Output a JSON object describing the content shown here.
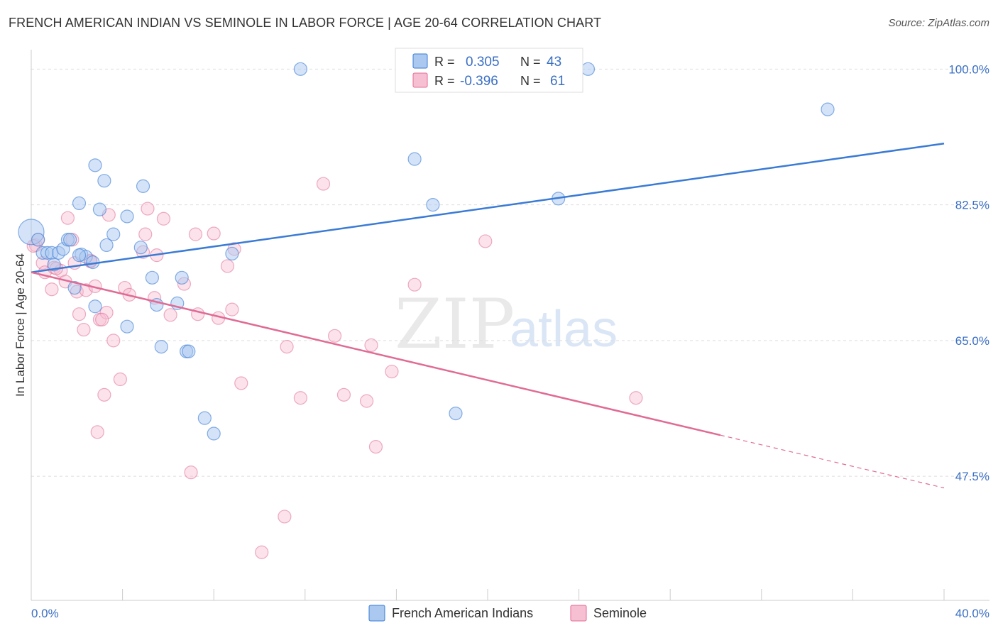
{
  "title": "FRENCH AMERICAN INDIAN VS SEMINOLE IN LABOR FORCE | AGE 20-64 CORRELATION CHART",
  "source": "Source: ZipAtlas.com",
  "watermark": {
    "part1": "ZIP",
    "part2": "atlas"
  },
  "colors": {
    "blue": "#3a7bd5",
    "blue_fill": "#aac8f0",
    "pink": "#e06b95",
    "pink_fill": "#f7bfd2",
    "axis_text": "#3a6fc4"
  },
  "legend": {
    "rows": [
      {
        "r_label": "R =",
        "r_value": "0.305",
        "n_label": "N =",
        "n_value": "43"
      },
      {
        "r_label": "R =",
        "r_value": "-0.396",
        "n_label": "N =",
        "n_value": "61"
      }
    ]
  },
  "chart_data": {
    "type": "scatter",
    "title": "FRENCH AMERICAN INDIAN VS SEMINOLE IN LABOR FORCE | AGE 20-64 CORRELATION CHART",
    "xlabel": "",
    "ylabel": "In Labor Force | Age 20-64",
    "xlim": [
      0,
      40
    ],
    "ylim": [
      31.5,
      102.5
    ],
    "x_tick_labels": [
      "0.0%",
      "40.0%"
    ],
    "y_ticks": [
      47.5,
      65.0,
      82.5,
      100.0
    ],
    "y_tick_labels": [
      "47.5%",
      "65.0%",
      "82.5%",
      "100.0%"
    ],
    "series": [
      {
        "name": "French American Indians",
        "color": "#3a7bd5",
        "r": 0.305,
        "n": 43,
        "trend": {
          "x0": 0.0,
          "y0": 73.8,
          "x1": 40.0,
          "y1": 90.4
        },
        "points": [
          [
            0.0,
            79.0
          ],
          [
            0.3,
            78.0
          ],
          [
            0.5,
            76.3
          ],
          [
            0.7,
            76.3
          ],
          [
            0.9,
            76.3
          ],
          [
            1.0,
            74.8
          ],
          [
            1.2,
            76.3
          ],
          [
            1.4,
            76.8
          ],
          [
            1.6,
            78.0
          ],
          [
            1.7,
            78.0
          ],
          [
            1.9,
            71.8
          ],
          [
            2.1,
            82.7
          ],
          [
            2.2,
            76.1
          ],
          [
            2.4,
            75.8
          ],
          [
            2.7,
            75.1
          ],
          [
            2.8,
            87.6
          ],
          [
            3.2,
            85.6
          ],
          [
            3.0,
            81.9
          ],
          [
            2.8,
            69.4
          ],
          [
            3.3,
            77.3
          ],
          [
            3.6,
            78.7
          ],
          [
            4.2,
            81.0
          ],
          [
            4.2,
            66.8
          ],
          [
            4.8,
            77.0
          ],
          [
            4.9,
            84.9
          ],
          [
            5.3,
            73.1
          ],
          [
            5.5,
            69.6
          ],
          [
            5.7,
            64.2
          ],
          [
            6.4,
            69.8
          ],
          [
            6.6,
            73.1
          ],
          [
            6.8,
            63.6
          ],
          [
            6.9,
            63.6
          ],
          [
            7.6,
            55.0
          ],
          [
            8.0,
            53.0
          ],
          [
            8.8,
            76.2
          ],
          [
            11.8,
            100.0
          ],
          [
            16.8,
            88.4
          ],
          [
            17.6,
            82.5
          ],
          [
            18.6,
            55.6
          ],
          [
            23.1,
            83.3
          ],
          [
            24.4,
            100.0
          ],
          [
            34.9,
            94.8
          ],
          [
            2.1,
            76.0
          ]
        ]
      },
      {
        "name": "Seminole",
        "color": "#e06b95",
        "r": -0.396,
        "n": 61,
        "trend": {
          "x0": 0.0,
          "y0": 73.8,
          "x1": 30.2,
          "y1": 52.8
        },
        "trend_dashed": {
          "x0": 30.2,
          "y0": 52.8,
          "x1": 40.0,
          "y1": 46.0
        },
        "points": [
          [
            0.2,
            77.3
          ],
          [
            0.3,
            78.0
          ],
          [
            0.5,
            75.0
          ],
          [
            0.6,
            73.8
          ],
          [
            0.9,
            71.6
          ],
          [
            1.0,
            74.4
          ],
          [
            1.3,
            74.0
          ],
          [
            1.5,
            72.6
          ],
          [
            1.6,
            80.8
          ],
          [
            1.8,
            78.0
          ],
          [
            1.9,
            75.0
          ],
          [
            2.0,
            71.3
          ],
          [
            2.1,
            68.4
          ],
          [
            2.3,
            66.4
          ],
          [
            2.4,
            71.5
          ],
          [
            2.6,
            75.2
          ],
          [
            2.8,
            72.0
          ],
          [
            2.9,
            53.2
          ],
          [
            3.0,
            67.7
          ],
          [
            3.2,
            58.0
          ],
          [
            3.3,
            68.6
          ],
          [
            3.4,
            81.2
          ],
          [
            3.6,
            65.0
          ],
          [
            3.9,
            60.0
          ],
          [
            4.1,
            71.8
          ],
          [
            4.3,
            70.9
          ],
          [
            4.9,
            76.4
          ],
          [
            5.0,
            78.7
          ],
          [
            5.1,
            82.0
          ],
          [
            5.4,
            70.5
          ],
          [
            5.5,
            76.0
          ],
          [
            5.8,
            80.7
          ],
          [
            6.1,
            68.3
          ],
          [
            6.7,
            72.3
          ],
          [
            7.0,
            48.0
          ],
          [
            7.2,
            78.7
          ],
          [
            7.3,
            68.4
          ],
          [
            8.0,
            78.8
          ],
          [
            8.2,
            67.9
          ],
          [
            8.6,
            74.6
          ],
          [
            8.8,
            69.0
          ],
          [
            8.9,
            76.8
          ],
          [
            9.2,
            59.5
          ],
          [
            10.1,
            37.7
          ],
          [
            11.1,
            42.3
          ],
          [
            11.2,
            64.2
          ],
          [
            11.8,
            57.6
          ],
          [
            12.8,
            85.2
          ],
          [
            13.3,
            65.6
          ],
          [
            13.7,
            58.0
          ],
          [
            14.7,
            57.2
          ],
          [
            14.9,
            64.4
          ],
          [
            15.1,
            51.3
          ],
          [
            15.8,
            61.0
          ],
          [
            16.8,
            72.2
          ],
          [
            19.9,
            77.8
          ],
          [
            26.5,
            57.6
          ],
          [
            0.1,
            77.2
          ],
          [
            1.1,
            74.3
          ],
          [
            2.6,
            75.3
          ],
          [
            3.1,
            67.7
          ]
        ]
      }
    ],
    "legend_placement": "top-center"
  }
}
